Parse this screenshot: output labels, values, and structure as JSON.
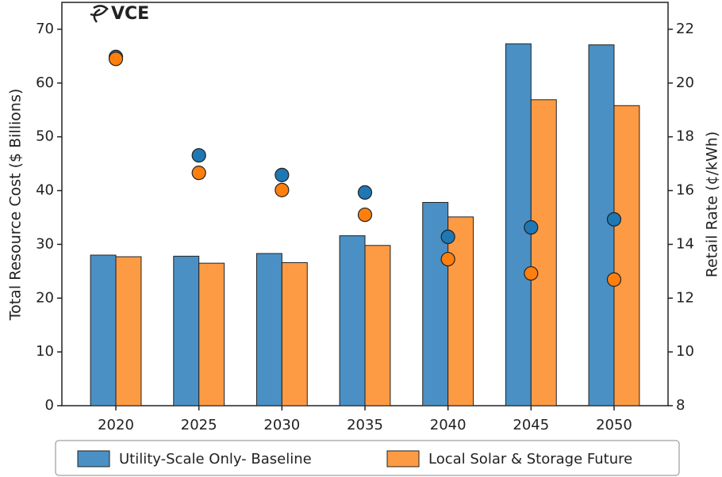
{
  "chart_data": {
    "type": "bar",
    "logo": "VCE",
    "categories": [
      "2020",
      "2025",
      "2030",
      "2035",
      "2040",
      "2045",
      "2050"
    ],
    "series": [
      {
        "name": "Utility-Scale Only- Baseline",
        "color": "#4a90c4",
        "values": [
          28.0,
          27.8,
          28.3,
          31.6,
          37.8,
          67.3,
          67.1
        ]
      },
      {
        "name": "Local Solar & Storage Future",
        "color": "#fd9a44",
        "values": [
          27.7,
          26.5,
          26.6,
          29.8,
          35.1,
          56.9,
          55.8
        ]
      }
    ],
    "line_series": [
      {
        "color": "#1f77b4",
        "axis": "y2",
        "values": [
          20.97,
          17.31,
          16.58,
          15.93,
          14.28,
          14.63,
          14.93
        ]
      },
      {
        "color": "#ff7f0e",
        "axis": "y2",
        "values": [
          20.9,
          16.66,
          16.02,
          15.1,
          13.45,
          12.92,
          12.69
        ]
      }
    ],
    "ylabel": "Total Resource Cost ($ Billions)",
    "y2label": "Retail Rate (¢/kWh)",
    "ylim": [
      0,
      75
    ],
    "yticks": [
      0,
      10,
      20,
      30,
      40,
      50,
      60,
      70
    ],
    "y2lim": [
      8,
      23
    ],
    "y2ticks": [
      8,
      10,
      12,
      14,
      16,
      18,
      20,
      22
    ],
    "legend": "bottom"
  }
}
